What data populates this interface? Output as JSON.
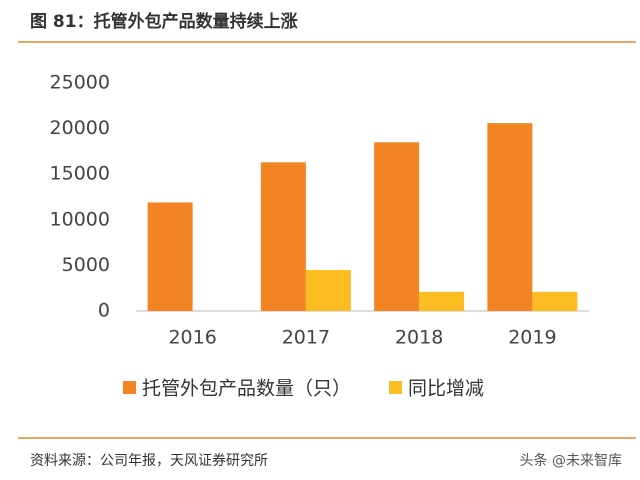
{
  "chart_data": {
    "type": "bar",
    "title": "图 81：托管外包产品数量持续上涨",
    "categories": [
      "2016",
      "2017",
      "2018",
      "2019"
    ],
    "series": [
      {
        "name": "托管外包产品数量（只）",
        "color": "#f28423",
        "values": [
          11900,
          16300,
          18500,
          20600
        ]
      },
      {
        "name": "同比增减",
        "color": "#fbbd21",
        "values": [
          null,
          4500,
          2100,
          2100
        ]
      }
    ],
    "ylim": [
      0,
      25000
    ],
    "yticks": [
      0,
      5000,
      10000,
      15000,
      20000,
      25000
    ],
    "grid": false,
    "source": "资料来源：公司年报，天风证券研究所",
    "watermark": "头条 @未来智库"
  }
}
